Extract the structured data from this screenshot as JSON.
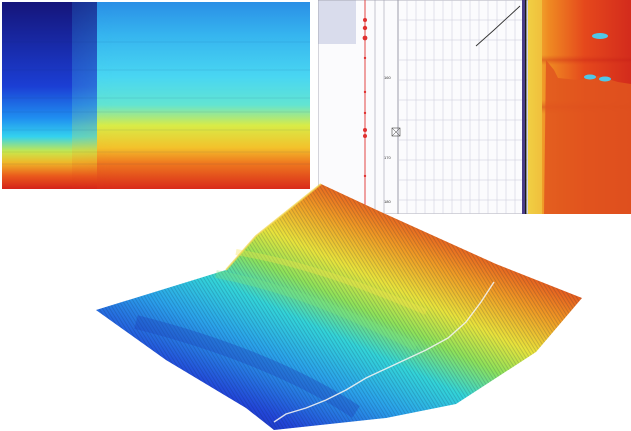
{
  "log_panel": {
    "depth_labels": [
      "160",
      "170",
      "180"
    ],
    "track_legend_1": "",
    "track_legend_2": "",
    "track_legend_3": ""
  },
  "colors": {
    "jet_dark_blue": "#1c1c9a",
    "jet_blue": "#1f6fe8",
    "jet_cyan": "#2ed6f0",
    "jet_green": "#a6e35a",
    "jet_yellow": "#f3e43a",
    "jet_orange": "#f08a20",
    "jet_red": "#d8231a",
    "curve_red": "#e03030",
    "grid_line": "#c9c9d8"
  },
  "surface_plot": {
    "trace_color": "#f2f2f2"
  }
}
